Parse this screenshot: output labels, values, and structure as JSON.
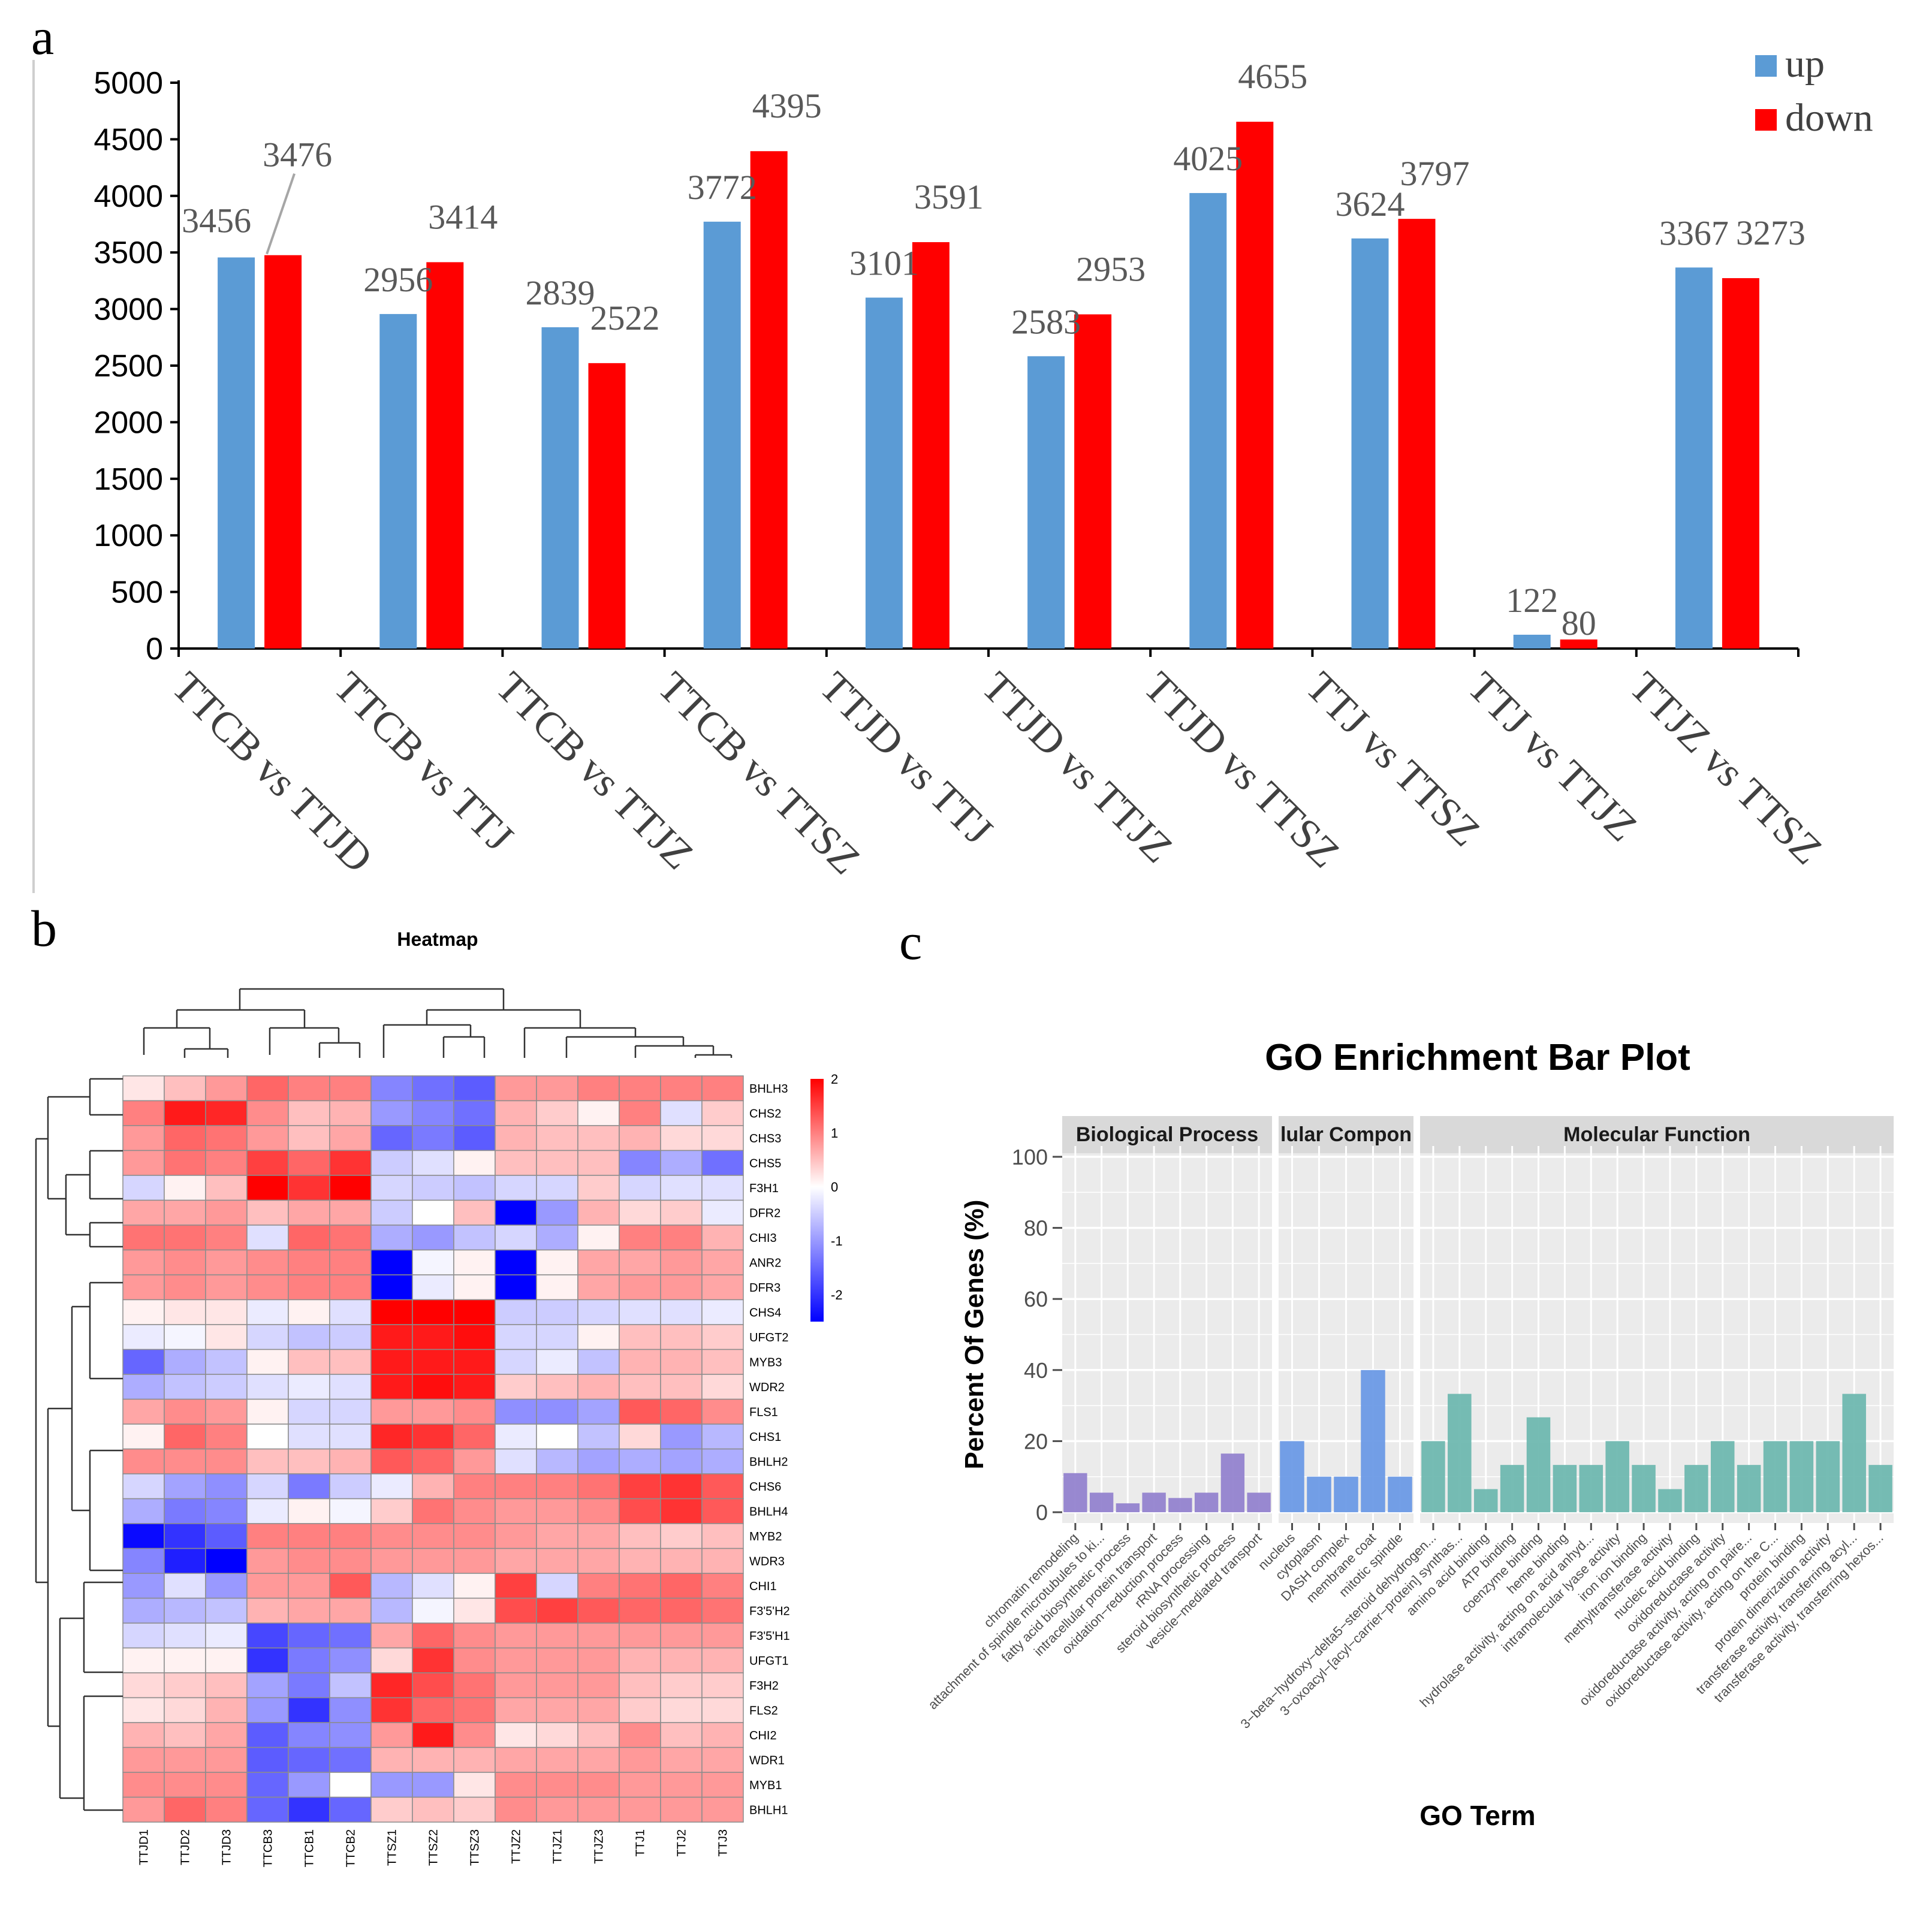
{
  "panels": {
    "a": "a",
    "b": "b",
    "c": "c"
  },
  "chart_data": [
    {
      "type": "bar",
      "panel": "a",
      "categories": [
        "TTCB vs TTJD",
        "TTCB vs TTJ",
        "TTCB vs TTJZ",
        "TTCB vs TTSZ",
        "TTJD vs TTJ",
        "TTJD vs TTJZ",
        "TTJD vs TTSZ",
        "TTJ vs TTSZ",
        "TTJ vs TTJZ",
        "TTJZ vs TTSZ"
      ],
      "series": [
        {
          "name": "up",
          "color": "#5b9bd5",
          "values": [
            3456,
            2956,
            2839,
            3772,
            3101,
            2583,
            4025,
            3624,
            122,
            3367
          ]
        },
        {
          "name": "down",
          "color": "#ff0000",
          "values": [
            3476,
            3414,
            2522,
            4395,
            3591,
            2953,
            4655,
            3797,
            80,
            3273
          ]
        }
      ],
      "ylim": [
        0,
        5000
      ],
      "yticks": [
        0,
        500,
        1000,
        1500,
        2000,
        2500,
        3000,
        3500,
        4000,
        4500,
        5000
      ],
      "legend": "top-right",
      "title": "",
      "xlabel": "",
      "ylabel": ""
    },
    {
      "type": "heatmap",
      "panel": "b",
      "title": "Heatmap",
      "columns": [
        "TTJD1",
        "TTJD2",
        "TTJD3",
        "TTCB3",
        "TTCB1",
        "TTCB2",
        "TTSZ1",
        "TTSZ2",
        "TTSZ3",
        "TTJZ2",
        "TTJZ1",
        "TTJZ3",
        "TTJ1",
        "TTJ2",
        "TTJ3"
      ],
      "rows": [
        "BHLH3",
        "CHS2",
        "CHS3",
        "CHS5",
        "F3H1",
        "DFR2",
        "CHI3",
        "ANR2",
        "DFR3",
        "CHS4",
        "UFGT2",
        "MYB3",
        "WDR2",
        "FLS1",
        "CHS1",
        "BHLH2",
        "CHS6",
        "BHLH4",
        "MYB2",
        "WDR3",
        "CHI1",
        "F3'5'H2",
        "F3'5'H1",
        "UFGT1",
        "F3H2",
        "FLS2",
        "CHI2",
        "WDR1",
        "MYB1",
        "BHLH1"
      ],
      "values": [
        [
          0.2,
          0.5,
          0.8,
          1.2,
          1.0,
          1.0,
          -1.2,
          -1.4,
          -1.6,
          0.8,
          0.8,
          1.0,
          1.0,
          1.0,
          1.0
        ],
        [
          1.0,
          1.8,
          1.7,
          0.9,
          0.5,
          0.6,
          -1.0,
          -1.2,
          -1.4,
          0.6,
          0.4,
          0.1,
          1.0,
          -0.3,
          0.4
        ],
        [
          0.8,
          1.2,
          1.1,
          0.8,
          0.5,
          0.7,
          -1.5,
          -1.3,
          -1.6,
          0.6,
          0.5,
          0.5,
          0.6,
          0.3,
          0.3
        ],
        [
          0.8,
          1.1,
          1.0,
          1.5,
          1.2,
          1.6,
          -0.5,
          -0.3,
          0.1,
          0.5,
          0.5,
          0.5,
          -1.2,
          -0.8,
          -1.4
        ],
        [
          -0.4,
          0.1,
          0.5,
          2.0,
          1.6,
          2.0,
          -0.4,
          -0.5,
          -0.6,
          -0.4,
          -0.4,
          0.4,
          -0.4,
          -0.3,
          -0.3
        ],
        [
          0.7,
          0.7,
          0.8,
          0.5,
          0.7,
          0.7,
          -0.5,
          0.0,
          0.5,
          -2.5,
          -1.0,
          0.6,
          0.3,
          0.4,
          -0.2
        ],
        [
          1.1,
          1.1,
          1.0,
          -0.3,
          1.2,
          1.1,
          -0.8,
          -1.0,
          -0.6,
          -0.4,
          -0.8,
          0.1,
          1.0,
          1.0,
          0.6
        ],
        [
          0.8,
          0.9,
          0.8,
          0.9,
          1.0,
          1.0,
          -2.5,
          -0.1,
          0.1,
          -2.5,
          0.1,
          0.7,
          0.7,
          0.8,
          0.7
        ],
        [
          0.8,
          0.9,
          0.8,
          0.9,
          1.0,
          1.0,
          -2.5,
          -0.2,
          0.1,
          -2.5,
          0.1,
          0.7,
          0.8,
          0.8,
          0.7
        ],
        [
          0.1,
          0.2,
          0.2,
          -0.2,
          0.1,
          -0.3,
          2.0,
          2.0,
          2.0,
          -0.5,
          -0.5,
          -0.4,
          -0.3,
          -0.3,
          -0.2
        ],
        [
          -0.2,
          -0.1,
          0.2,
          -0.4,
          -0.6,
          -0.5,
          1.8,
          1.8,
          1.9,
          -0.4,
          -0.4,
          0.1,
          0.5,
          0.5,
          0.4
        ],
        [
          -1.5,
          -0.8,
          -0.6,
          0.1,
          0.5,
          0.5,
          1.8,
          1.8,
          1.8,
          -0.4,
          -0.2,
          -0.6,
          0.6,
          0.6,
          0.5
        ],
        [
          -0.8,
          -0.6,
          -0.5,
          -0.3,
          -0.2,
          -0.3,
          1.8,
          1.9,
          1.8,
          0.4,
          0.5,
          0.6,
          0.5,
          0.5,
          0.3
        ],
        [
          0.7,
          0.9,
          0.8,
          0.1,
          -0.4,
          -0.4,
          0.8,
          0.8,
          0.9,
          -1.1,
          -1.1,
          -0.9,
          1.3,
          1.2,
          0.9
        ],
        [
          0.1,
          1.2,
          1.0,
          0.0,
          -0.3,
          -0.3,
          1.7,
          1.6,
          1.2,
          -0.2,
          0.0,
          -0.6,
          0.3,
          -1.0,
          -0.7
        ],
        [
          0.9,
          0.9,
          0.9,
          0.5,
          0.5,
          0.6,
          1.3,
          1.2,
          0.8,
          -0.3,
          -0.7,
          -0.9,
          -0.8,
          -0.9,
          -0.8
        ],
        [
          -0.4,
          -0.9,
          -1.1,
          -0.4,
          -1.3,
          -0.5,
          -0.2,
          0.6,
          1.0,
          1.0,
          1.0,
          1.1,
          1.5,
          1.6,
          1.3
        ],
        [
          -0.8,
          -1.3,
          -1.2,
          -0.2,
          0.1,
          -0.1,
          0.4,
          1.1,
          0.9,
          0.8,
          0.8,
          0.9,
          1.4,
          1.6,
          1.3
        ],
        [
          -2.4,
          -2.0,
          -1.6,
          1.0,
          1.0,
          1.0,
          0.9,
          0.9,
          0.9,
          0.8,
          0.7,
          0.7,
          0.5,
          0.4,
          0.5
        ],
        [
          -1.2,
          -2.2,
          -2.6,
          0.8,
          0.9,
          0.9,
          0.8,
          0.8,
          0.8,
          0.7,
          0.7,
          0.7,
          0.6,
          0.6,
          0.6
        ],
        [
          -1.0,
          -0.3,
          -1.0,
          0.8,
          0.8,
          1.3,
          -0.7,
          -0.3,
          0.1,
          1.5,
          -0.4,
          1.0,
          1.1,
          1.2,
          1.0
        ],
        [
          -0.8,
          -0.7,
          -0.6,
          0.6,
          0.7,
          0.7,
          -0.7,
          -0.1,
          0.2,
          1.4,
          1.5,
          1.3,
          1.2,
          1.2,
          1.1
        ],
        [
          -0.4,
          -0.3,
          -0.2,
          -1.8,
          -1.5,
          -1.4,
          0.7,
          1.2,
          0.9,
          0.8,
          0.8,
          0.8,
          0.8,
          0.8,
          0.8
        ],
        [
          0.1,
          0.1,
          0.1,
          -2.0,
          -1.3,
          -1.1,
          0.3,
          1.6,
          0.9,
          0.8,
          0.8,
          0.8,
          0.6,
          0.6,
          0.6
        ],
        [
          0.3,
          0.4,
          0.5,
          -0.9,
          -1.3,
          -0.6,
          1.7,
          1.4,
          1.1,
          0.8,
          0.8,
          0.8,
          0.5,
          0.4,
          0.4
        ],
        [
          0.2,
          0.3,
          0.6,
          -1.0,
          -2.0,
          -1.1,
          1.6,
          1.2,
          1.1,
          0.7,
          0.7,
          0.7,
          0.4,
          0.3,
          0.3
        ],
        [
          0.6,
          0.5,
          0.7,
          -1.6,
          -1.2,
          -1.1,
          0.8,
          1.8,
          0.9,
          0.2,
          0.3,
          0.5,
          0.9,
          0.5,
          0.6
        ],
        [
          0.8,
          0.8,
          0.8,
          -1.6,
          -1.5,
          -1.4,
          0.6,
          0.6,
          0.6,
          0.7,
          0.7,
          0.7,
          0.8,
          0.7,
          0.7
        ],
        [
          0.9,
          0.9,
          0.9,
          -1.5,
          -1.0,
          0.0,
          -1.0,
          -1.0,
          0.2,
          0.9,
          0.9,
          0.9,
          0.8,
          0.8,
          0.8
        ],
        [
          0.8,
          1.2,
          1.0,
          -1.5,
          -2.0,
          -1.5,
          0.4,
          0.5,
          0.4,
          0.9,
          0.8,
          0.8,
          0.8,
          0.8,
          0.8
        ]
      ],
      "color_scale": {
        "low": "#0000ff",
        "mid": "#ffffff",
        "high": "#ff0000",
        "min": -2.5,
        "max": 2
      },
      "legend_ticks": [
        "2",
        "1",
        "0",
        "-1",
        "-2"
      ]
    },
    {
      "type": "bar",
      "panel": "c",
      "title": "GO Enrichment Bar Plot",
      "xlabel": "GO Term",
      "ylabel": "Percent Of Genes (%)",
      "ylim": [
        0,
        100
      ],
      "yticks": [
        0,
        20,
        40,
        60,
        80,
        100
      ],
      "facets": [
        {
          "name": "Biological Process",
          "strip_label": "Biological Process",
          "color": "#9483cf",
          "categories": [
            "chromatin remodeling",
            "attachment of spindle microtubules to ki...",
            "fatty acid biosynthetic process",
            "intracellular protein transport",
            "oxidation−reduction process",
            "rRNA processing",
            "steroid biosynthetic process",
            "vesicle−mediated transport"
          ],
          "values": [
            11,
            5.5,
            2.5,
            5.5,
            4,
            5.5,
            16.5,
            5.5
          ]
        },
        {
          "name": "Cellular Component",
          "strip_label": "lular Compon",
          "color": "#6b9ae6",
          "categories": [
            "nucleus",
            "cytoplasm",
            "DASH complex",
            "membrane coat",
            "mitotic spindle"
          ],
          "values": [
            20,
            10,
            10,
            40,
            10
          ]
        },
        {
          "name": "Molecular Function",
          "strip_label": "Molecular Function",
          "color": "#6fb8b0",
          "categories": [
            "3−beta−hydroxy−delta5−steroid dehydrogen...",
            "3−oxoacyl−[acyl−carrier−protein] synthas...",
            "amino acid binding",
            "ATP binding",
            "coenzyme binding",
            "heme binding",
            "hydrolase activity, acting on acid anhyd...",
            "intramolecular lyase activity",
            "iron ion binding",
            "methyltransferase activity",
            "nucleic acid binding",
            "oxidoreductase activity",
            "oxidoreductase activity, acting on paire...",
            "oxidoreductase activity, acting on the C...",
            "protein binding",
            "protein dimerization activity",
            "transferase activity, transferring acyl...",
            "transferase activity, transferring hexos..."
          ],
          "values": [
            20,
            33.3,
            6.5,
            13.3,
            26.7,
            13.3,
            13.3,
            20,
            13.3,
            6.5,
            13.3,
            20,
            13.3,
            20,
            20,
            20,
            33.3,
            13.3
          ]
        }
      ]
    }
  ]
}
